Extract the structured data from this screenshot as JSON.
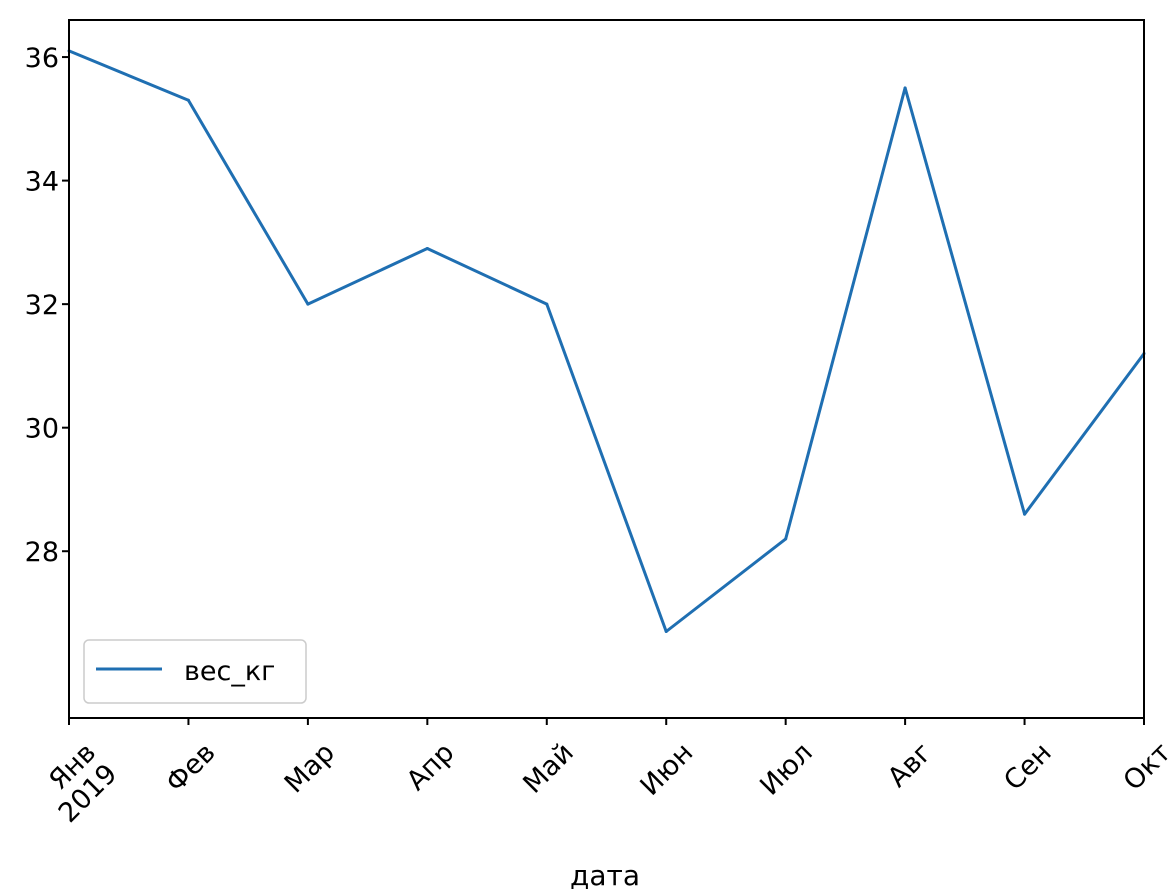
{
  "chart_data": {
    "type": "line",
    "x": [
      "2019-01",
      "2019-02",
      "2019-03",
      "2019-04",
      "2019-05",
      "2019-06",
      "2019-07",
      "2019-08",
      "2019-09",
      "2019-10"
    ],
    "tick_labels": [
      "Янв\n2019",
      "Фев",
      "Мар",
      "Апр",
      "Май",
      "Июн",
      "Июл",
      "Авг",
      "Сен",
      "Окт"
    ],
    "series": [
      {
        "name": "вес_кг",
        "values": [
          36.1,
          35.3,
          32.0,
          32.9,
          32.0,
          26.7,
          28.2,
          35.5,
          28.6,
          31.2
        ]
      }
    ],
    "xlabel": "дата",
    "ylabel": "",
    "yticks": [
      28,
      30,
      32,
      34,
      36
    ],
    "ylim": [
      25.3,
      36.6
    ],
    "grid": false,
    "legend": "lower-left",
    "colors": {
      "line": "#1f6fb2"
    }
  }
}
